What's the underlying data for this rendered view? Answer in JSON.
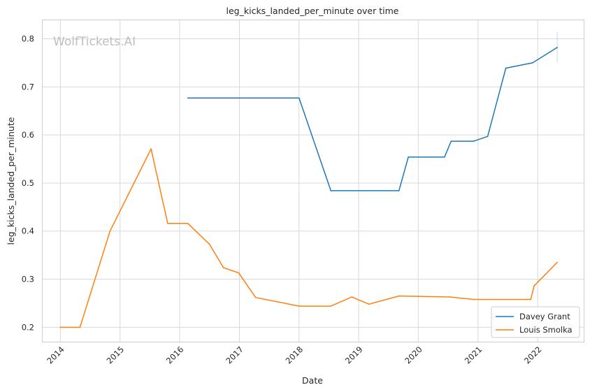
{
  "chart_data": {
    "type": "line",
    "title": "leg_kicks_landed_per_minute over time",
    "xlabel": "Date",
    "ylabel": "leg_kicks_landed_per_minute",
    "watermark": "WolfTickets.AI",
    "x_ticks": [
      "2014",
      "2015",
      "2016",
      "2017",
      "2018",
      "2019",
      "2020",
      "2021",
      "2022"
    ],
    "y_ticks": [
      "0.2",
      "0.3",
      "0.4",
      "0.5",
      "0.6",
      "0.7",
      "0.8"
    ],
    "xlim": [
      "2013-09-10",
      "2022-10-10"
    ],
    "ylim": [
      0.17,
      0.84
    ],
    "grid": true,
    "legend_position": "lower-right",
    "series": [
      {
        "name": "Davey Grant",
        "color": "#1f77b4",
        "points": [
          [
            "2016-02-20",
            0.677
          ],
          [
            "2018-01-01",
            0.677
          ],
          [
            "2018-07-15",
            0.484
          ],
          [
            "2019-09-05",
            0.484
          ],
          [
            "2019-11-01",
            0.554
          ],
          [
            "2020-06-10",
            0.554
          ],
          [
            "2020-07-20",
            0.587
          ],
          [
            "2020-12-05",
            0.587
          ],
          [
            "2021-03-01",
            0.597
          ],
          [
            "2021-06-20",
            0.739
          ],
          [
            "2021-12-01",
            0.75
          ],
          [
            "2022-05-01",
            0.782
          ]
        ],
        "error_bar": {
          "x": "2022-05-01",
          "low": 0.75,
          "high": 0.815
        }
      },
      {
        "name": "Louis Smolka",
        "color": "#ff7f0e",
        "points": [
          [
            "2014-01-01",
            0.2
          ],
          [
            "2014-05-01",
            0.2
          ],
          [
            "2014-11-01",
            0.4
          ],
          [
            "2015-07-10",
            0.571
          ],
          [
            "2015-10-20",
            0.416
          ],
          [
            "2016-02-20",
            0.416
          ],
          [
            "2016-07-01",
            0.373
          ],
          [
            "2016-09-25",
            0.324
          ],
          [
            "2016-12-28",
            0.313
          ],
          [
            "2017-04-10",
            0.262
          ],
          [
            "2018-01-01",
            0.244
          ],
          [
            "2018-07-15",
            0.244
          ],
          [
            "2018-11-20",
            0.263
          ],
          [
            "2019-03-05",
            0.248
          ],
          [
            "2019-09-05",
            0.265
          ],
          [
            "2020-07-10",
            0.263
          ],
          [
            "2020-12-05",
            0.258
          ],
          [
            "2021-11-20",
            0.258
          ],
          [
            "2021-12-10",
            0.286
          ],
          [
            "2022-05-01",
            0.335
          ]
        ]
      }
    ]
  }
}
